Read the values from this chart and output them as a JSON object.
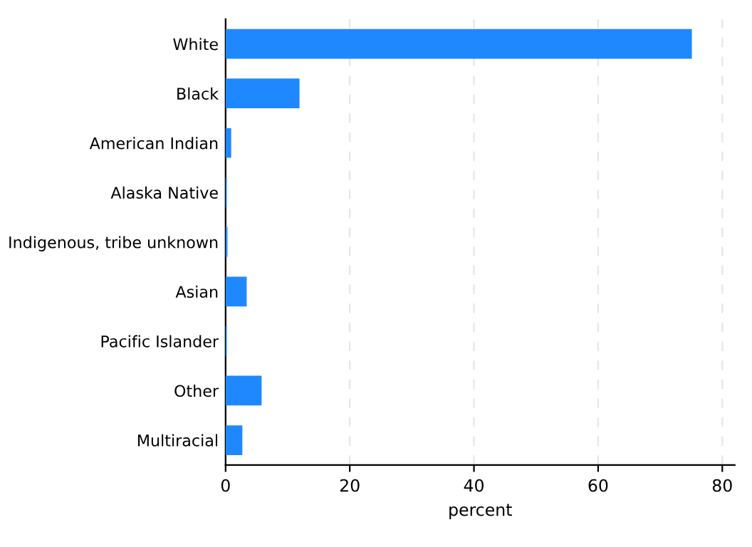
{
  "chart_data": {
    "type": "bar",
    "orientation": "horizontal",
    "categories": [
      "White",
      "Black",
      "American Indian",
      "Alaska Native",
      "Indigenous, tribe unknown",
      "Asian",
      "Pacific Islander",
      "Other",
      "Multiracial"
    ],
    "values": [
      75.1,
      11.9,
      0.9,
      0.2,
      0.3,
      3.4,
      0.2,
      5.8,
      2.7
    ],
    "color": "#1f88ff",
    "xlabel": "percent",
    "xlim": [
      0,
      82
    ],
    "xticks": [
      0,
      20,
      40,
      60,
      80
    ],
    "grid": "x"
  }
}
